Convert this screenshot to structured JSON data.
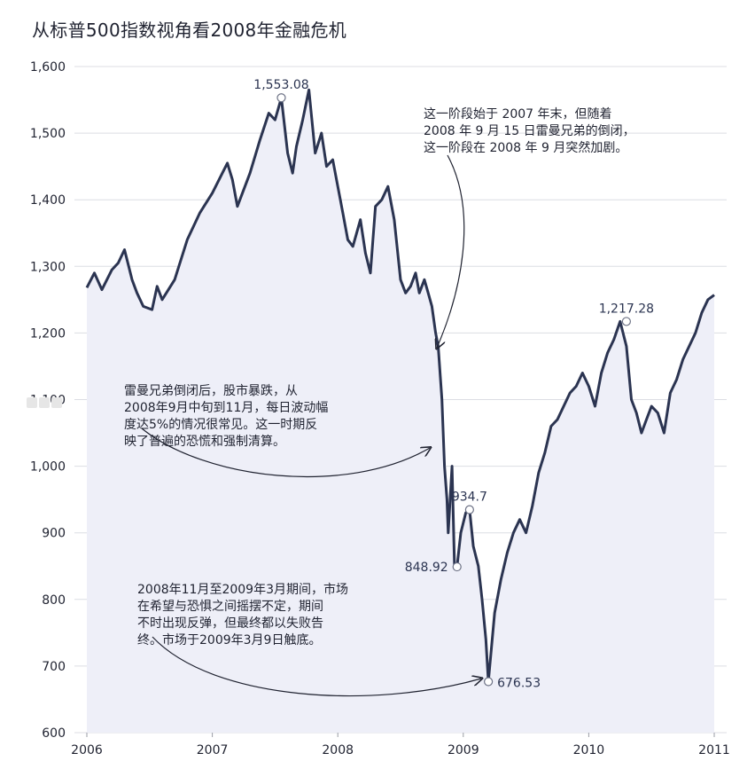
{
  "title": "从标普500指数视角看2008年金融危机",
  "chart_data": {
    "type": "area",
    "title": "从标普500指数视角看2008年金融危机",
    "xlabel": "",
    "ylabel": "",
    "xlim": [
      2006,
      2011
    ],
    "ylim": [
      600,
      1600
    ],
    "x_ticks": [
      "2006",
      "2007",
      "2008",
      "2009",
      "2010",
      "2011"
    ],
    "y_ticks": [
      "600",
      "700",
      "800",
      "900",
      "1,000",
      "1,100",
      "1,200",
      "1,300",
      "1,400",
      "1,500",
      "1,600"
    ],
    "grid": true,
    "line_color": "#2b3451",
    "fill_color": "#eeeff8",
    "series": [
      {
        "x": [
          2006.0,
          2006.06,
          2006.12,
          2006.2,
          2006.25,
          2006.3,
          2006.36,
          2006.4,
          2006.45,
          2006.52,
          2006.56,
          2006.6,
          2006.7,
          2006.8,
          2006.9,
          2007.0,
          2007.08,
          2007.12,
          2007.16,
          2007.2,
          2007.3,
          2007.38,
          2007.45,
          2007.5,
          2007.55,
          2007.6,
          2007.64,
          2007.67,
          2007.72,
          2007.77,
          2007.82,
          2007.87,
          2007.91,
          2007.96,
          2008.0,
          2008.04,
          2008.08,
          2008.12,
          2008.18,
          2008.22,
          2008.26,
          2008.3,
          2008.35,
          2008.4,
          2008.45,
          2008.5,
          2008.54,
          2008.58,
          2008.62,
          2008.65,
          2008.69,
          2008.72,
          2008.75,
          2008.78,
          2008.8,
          2008.83,
          2008.85,
          2008.87,
          2008.88,
          2008.91,
          2008.93,
          2008.95,
          2008.98,
          2009.02,
          2009.05,
          2009.08,
          2009.12,
          2009.15,
          2009.18,
          2009.2,
          2009.25,
          2009.3,
          2009.35,
          2009.4,
          2009.45,
          2009.5,
          2009.55,
          2009.6,
          2009.65,
          2009.7,
          2009.75,
          2009.8,
          2009.85,
          2009.9,
          2009.95,
          2010.0,
          2010.05,
          2010.1,
          2010.15,
          2010.2,
          2010.25,
          2010.3,
          2010.34,
          2010.38,
          2010.42,
          2010.46,
          2010.5,
          2010.55,
          2010.6,
          2010.65,
          2010.7,
          2010.75,
          2010.8,
          2010.85,
          2010.9,
          2010.95,
          2011.0
        ],
        "y": [
          1268,
          1290,
          1265,
          1295,
          1305,
          1325,
          1280,
          1260,
          1240,
          1235,
          1270,
          1250,
          1280,
          1340,
          1380,
          1410,
          1440,
          1455,
          1430,
          1390,
          1440,
          1490,
          1530,
          1520,
          1553,
          1470,
          1440,
          1480,
          1520,
          1565,
          1470,
          1500,
          1450,
          1460,
          1420,
          1380,
          1340,
          1330,
          1370,
          1320,
          1290,
          1390,
          1400,
          1420,
          1370,
          1280,
          1260,
          1270,
          1290,
          1260,
          1280,
          1260,
          1240,
          1200,
          1180,
          1100,
          1000,
          950,
          900,
          1000,
          850,
          848.92,
          900,
          930,
          934.7,
          880,
          850,
          800,
          740,
          676.53,
          780,
          830,
          870,
          900,
          920,
          900,
          940,
          990,
          1020,
          1060,
          1070,
          1090,
          1110,
          1120,
          1140,
          1120,
          1090,
          1140,
          1170,
          1190,
          1217.28,
          1180,
          1100,
          1080,
          1050,
          1070,
          1090,
          1080,
          1050,
          1110,
          1130,
          1160,
          1180,
          1200,
          1230,
          1250,
          1257
        ]
      }
    ],
    "data_labels": [
      {
        "x": 2007.55,
        "y": 1553.08,
        "label": "1,553.08",
        "pos": "above"
      },
      {
        "x": 2009.05,
        "y": 934.7,
        "label": "934.7",
        "pos": "above"
      },
      {
        "x": 2008.95,
        "y": 848.92,
        "label": "848.92",
        "pos": "left"
      },
      {
        "x": 2009.2,
        "y": 676.53,
        "label": "676.53",
        "pos": "right"
      },
      {
        "x": 2010.3,
        "y": 1217.28,
        "label": "1,217.28",
        "pos": "above"
      }
    ]
  },
  "annotations": {
    "note_1": "这一阶段始于 2007 年末，但随着\n2008 年 9 月 15 日雷曼兄弟的倒闭，\n这一阶段在 2008 年 9 月突然加剧。",
    "note_2": "雷曼兄弟倒闭后，股市暴跌，从\n2008年9月中旬到11月，每日波动幅\n度达5%的情况很常见。这一时期反\n映了普遍的恐慌和强制清算。",
    "note_3": "2008年11月至2009年3月期间，市场\n在希望与恐惧之间摇摆不定，期间\n不时出现反弹，但最终都以失败告\n终。市场于2009年3月9日触底。"
  }
}
